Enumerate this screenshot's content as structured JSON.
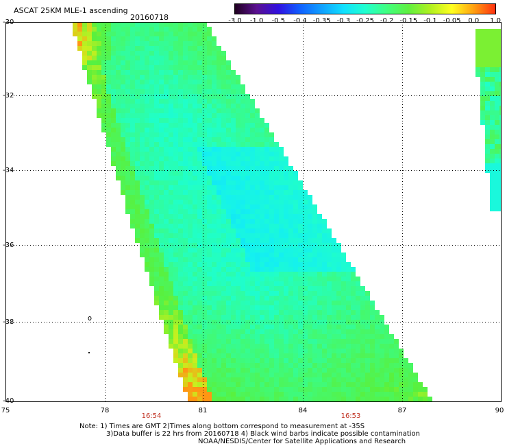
{
  "header": {
    "title": "ASCAT 25KM MLE-1 ascending",
    "date": "20160718"
  },
  "colorbar": {
    "labels": [
      "-3.0",
      "-1.0",
      "-0.5",
      "-0.4",
      "-0.35",
      "-0.3",
      "-0.25",
      "-0.2",
      "-0.15",
      "-0.1",
      "-0.05",
      "0.0",
      "1.0"
    ],
    "colors": [
      "#200020",
      "#5a1090",
      "#3010e0",
      "#1060ff",
      "#10a0ff",
      "#10e0ff",
      "#20ffd0",
      "#40ff80",
      "#60f040",
      "#b0f020",
      "#ffff20",
      "#ffa010",
      "#ff3010"
    ]
  },
  "axes": {
    "y_labels": [
      "-30",
      "-32",
      "-34",
      "-36",
      "-38",
      "-40"
    ],
    "x_labels": [
      "75",
      "78",
      "81",
      "84",
      "87",
      "90"
    ]
  },
  "swath_times": [
    "16:54",
    "16:53"
  ],
  "footer": {
    "line1": "Note: 1) Times are GMT 2)Times along bottom correspond to measurement at -35S",
    "line2": "3)Data buffer is 22 hrs from 20160718 4) Black wind barbs indicate possible contamination",
    "line3": "NOAA/NESDIS/Center for Satellite Applications and Research"
  }
}
